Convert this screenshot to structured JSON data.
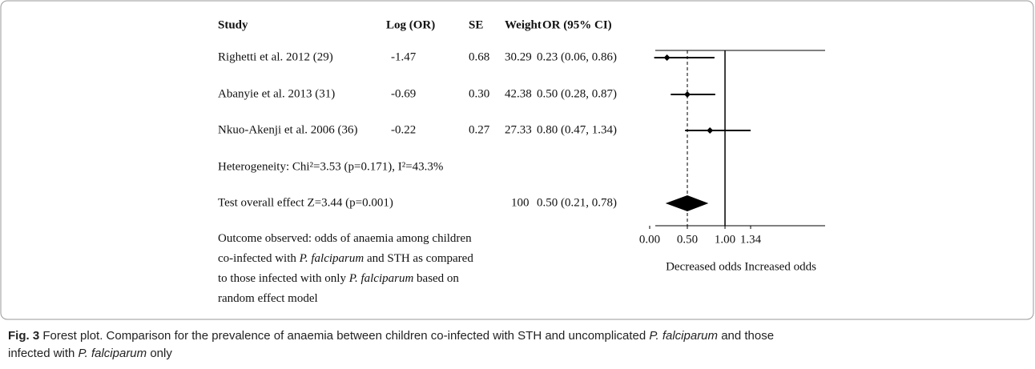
{
  "chart_data": {
    "type": "forest",
    "columns": [
      "Study",
      "Log (OR)",
      "SE",
      "Weight",
      "OR (95% CI)"
    ],
    "studies": [
      "Righetti et al. 2012 (29)",
      "Abanyie et al. 2013 (31)",
      "Nkuo-Akenji et al. 2006 (36)"
    ],
    "log_or": [
      "-1.47",
      "-0.69",
      "-0.22"
    ],
    "se": [
      "0.68",
      "0.30",
      "0.27"
    ],
    "weight": [
      "30.29",
      "42.38",
      "27.33"
    ],
    "values": [
      0.23,
      0.5,
      0.8
    ],
    "value_labels": [
      "0.23 (0.06, 0.86)",
      "0.50 (0.28, 0.87)",
      "0.80 (0.47, 1.34)"
    ],
    "ci_low": [
      0.06,
      0.28,
      0.47
    ],
    "ci_high": [
      0.86,
      0.87,
      1.34
    ],
    "heterogeneity": "Heterogeneity: Chi²=3.53 (p=0.171), I²=43.3%",
    "overall": {
      "label": "Test overall effect Z=3.44 (p=0.001)",
      "weight": "100",
      "value": 0.5,
      "ci_low": 0.21,
      "ci_high": 0.78,
      "value_label": "0.50 (0.21, 0.78)"
    },
    "null_line": 1,
    "xlim": [
      0,
      1.34
    ],
    "xticks": [
      {
        "value": 0,
        "label": "0.00"
      },
      {
        "value": 0.5,
        "label": "0.50"
      },
      {
        "value": 1,
        "label": "1.00"
      },
      1.34
    ],
    "xlabel": "Decreased odds Increased odds",
    "note": [
      [
        {
          "text": "Outcome observed: odds of anaemia among children"
        }
      ],
      [
        {
          "text": "co-infected with "
        },
        {
          "text": "P. falciparum",
          "italic": true
        },
        {
          "text": " and STH as compared"
        }
      ],
      [
        {
          "text": "to those infected with only "
        },
        {
          "text": "P. falciparum",
          "italic": true
        },
        {
          "text": " based on"
        }
      ],
      [
        {
          "text": "random  effect model"
        }
      ]
    ]
  },
  "caption": [
    [
      {
        "text": "Fig. 3",
        "bold": true
      },
      {
        "text": " Forest plot. Comparison for the prevalence of anaemia between children co-infected with STH and uncomplicated "
      },
      {
        "text": "P. falciparum",
        "italic": true
      },
      {
        "text": " and those"
      }
    ],
    [
      {
        "text": "infected with "
      },
      {
        "text": "P. falciparum",
        "italic": true
      },
      {
        "text": " only"
      }
    ]
  ]
}
